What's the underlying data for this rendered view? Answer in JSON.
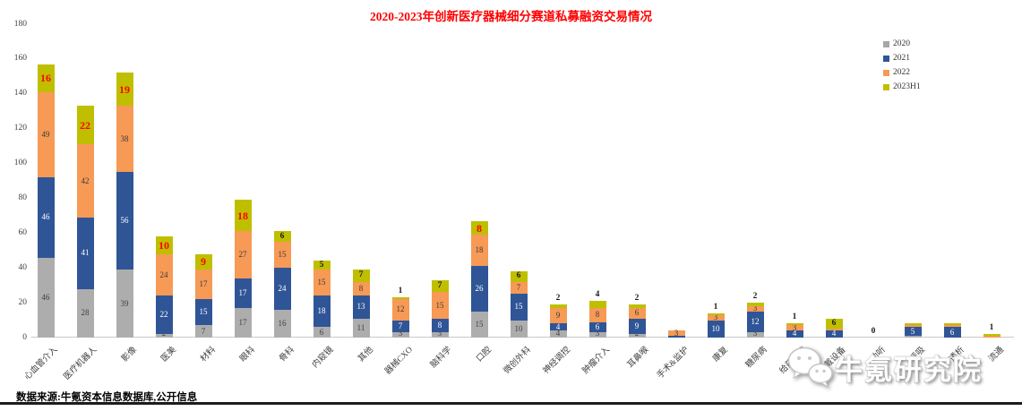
{
  "title": {
    "text": "2020-2023年创新医疗器械细分赛道私募融资交易情况",
    "color": "#FF0000"
  },
  "legend": [
    {
      "label": "2020",
      "color": "#A6A6A6"
    },
    {
      "label": "2021",
      "color": "#2F5597"
    },
    {
      "label": "2022",
      "color": "#F69A56"
    },
    {
      "label": "2023H1",
      "color": "#BFBF00"
    }
  ],
  "y_axis": {
    "min": 0,
    "max": 180,
    "step": 20,
    "ticks": [
      "0",
      "20",
      "40",
      "60",
      "80",
      "100",
      "120",
      "140",
      "160",
      "180"
    ]
  },
  "footer": {
    "source": "数据来源:牛氪资本信息数据库,公开信息"
  },
  "watermark": {
    "text": "牛氪研究院",
    "icon": "wechat-icon"
  },
  "chart_data": {
    "type": "bar",
    "stacked": true,
    "title": "2020-2023年创新医疗器械细分赛道私募融资交易情况",
    "xlabel": "",
    "ylabel": "",
    "ylim": [
      0,
      180
    ],
    "grid": false,
    "legend_position": "top-right",
    "categories": [
      "心血管介入",
      "医疗机器人",
      "影像",
      "医美",
      "材料",
      "眼科",
      "骨科",
      "内窥镜",
      "其他",
      "器械CXO",
      "脑科学",
      "口腔",
      "微创外科",
      "神经调控",
      "肿瘤介入",
      "耳鼻喉",
      "手术&监护",
      "康复",
      "糖尿病",
      "给药系统",
      "可穿戴设备",
      "助听",
      "呼吸",
      "透析",
      "流通"
    ],
    "series": [
      {
        "name": "2020",
        "color": "#ADADAD",
        "values": [
          46,
          28,
          39,
          2,
          7,
          17,
          16,
          6,
          11,
          3,
          3,
          15,
          10,
          4,
          3,
          2,
          0,
          0,
          3,
          0,
          0,
          0,
          1,
          0,
          0
        ]
      },
      {
        "name": "2021",
        "color": "#2F5597",
        "values": [
          46,
          41,
          56,
          22,
          15,
          17,
          24,
          18,
          13,
          7,
          8,
          26,
          15,
          4,
          6,
          9,
          1,
          10,
          12,
          4,
          4,
          0,
          5,
          6,
          0
        ]
      },
      {
        "name": "2022",
        "color": "#F69A56",
        "values": [
          49,
          42,
          38,
          24,
          17,
          27,
          15,
          15,
          8,
          12,
          15,
          18,
          7,
          9,
          8,
          6,
          3,
          3,
          3,
          3,
          1,
          0,
          1,
          1,
          1
        ]
      },
      {
        "name": "2023H1",
        "color": "#BFBF00",
        "values": [
          16,
          22,
          19,
          10,
          9,
          18,
          6,
          5,
          7,
          1,
          7,
          8,
          6,
          2,
          4,
          2,
          0,
          1,
          2,
          1,
          6,
          0,
          1,
          1,
          1
        ]
      }
    ],
    "top_labels": [
      {
        "text": "16",
        "style": "red"
      },
      {
        "text": "22",
        "style": "red"
      },
      {
        "text": "19",
        "style": "red"
      },
      {
        "text": "10",
        "style": "red"
      },
      {
        "text": "9",
        "style": "red"
      },
      {
        "text": "18",
        "style": "red"
      },
      {
        "text": "6",
        "style": "black"
      },
      {
        "text": "5",
        "style": "black"
      },
      {
        "text": "7",
        "style": "black"
      },
      {
        "text": "1",
        "style": "black"
      },
      {
        "text": "7",
        "style": "black"
      },
      {
        "text": "8",
        "style": "red"
      },
      {
        "text": "6",
        "style": "black"
      },
      {
        "text": "2",
        "style": "black"
      },
      {
        "text": "4",
        "style": "black"
      },
      {
        "text": "2",
        "style": "black"
      },
      null,
      {
        "text": "1",
        "style": "black"
      },
      {
        "text": "2",
        "style": "black"
      },
      {
        "text": "1",
        "style": "black"
      },
      {
        "text": "6",
        "style": "black"
      },
      {
        "text": "0",
        "style": "black"
      },
      null,
      null,
      {
        "text": "1",
        "style": "black"
      }
    ]
  }
}
